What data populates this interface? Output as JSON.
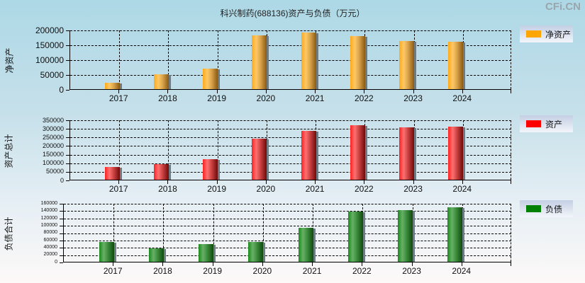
{
  "title": "科兴制药(688136)资产与负债（万元）",
  "watermark": "CFi.CN",
  "chart_data": [
    {
      "type": "bar",
      "title": "科兴制药(688136)资产与负债（万元）",
      "ylabel": "净资产",
      "xlabel": "",
      "categories": [
        "2017",
        "2018",
        "2019",
        "2020",
        "2021",
        "2022",
        "2023",
        "2024"
      ],
      "series": [
        {
          "name": "净资产",
          "color": "#ffa500",
          "values": [
            22000,
            50700,
            69800,
            181700,
            191200,
            179300,
            162600,
            160200
          ]
        }
      ],
      "ylim": [
        0,
        200000
      ],
      "yticks": [
        "200000",
        "150000",
        "100000",
        "50000",
        "0"
      ],
      "grid": true,
      "legend_position": "right"
    },
    {
      "type": "bar",
      "ylabel": "资产总计",
      "xlabel": "",
      "categories": [
        "2017",
        "2018",
        "2019",
        "2020",
        "2021",
        "2022",
        "2023",
        "2024"
      ],
      "series": [
        {
          "name": "资产",
          "color": "#ff0000",
          "values": [
            76200,
            88700,
            117900,
            238800,
            284600,
            317900,
            305400,
            309600
          ]
        }
      ],
      "ylim": [
        0,
        350000
      ],
      "yticks": [
        "350000",
        "300000",
        "250000",
        "200000",
        "150000",
        "100000",
        "50000",
        "0"
      ],
      "grid": true,
      "legend_position": "right"
    },
    {
      "type": "bar",
      "ylabel": "负债合计",
      "xlabel": "",
      "categories": [
        "2017",
        "2018",
        "2019",
        "2020",
        "2021",
        "2022",
        "2023",
        "2024"
      ],
      "series": [
        {
          "name": "负债",
          "color": "#008000",
          "values": [
            54800,
            37200,
            49000,
            54800,
            92000,
            137100,
            141000,
            148800
          ]
        }
      ],
      "ylim": [
        0,
        160000
      ],
      "yticks": [
        "160000",
        "140000",
        "120000",
        "100000",
        "80000",
        "60000",
        "40000",
        "20000",
        "0"
      ],
      "grid": true,
      "legend_position": "right"
    }
  ],
  "panels": [
    {
      "ylabel": "净资产",
      "legend_label": "净资产"
    },
    {
      "ylabel": "资产总计",
      "legend_label": "资产"
    },
    {
      "ylabel": "负债合计",
      "legend_label": "负债"
    }
  ]
}
